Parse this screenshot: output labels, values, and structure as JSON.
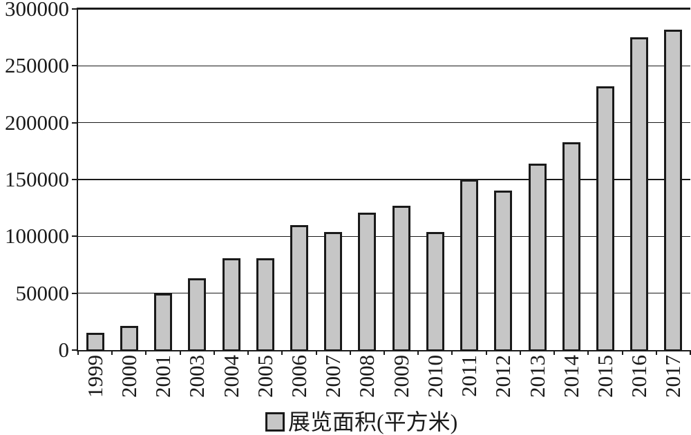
{
  "chart_data": {
    "type": "bar",
    "title": "",
    "xlabel": "",
    "ylabel": "",
    "categories": [
      "1999",
      "2000",
      "2001",
      "2003",
      "2004",
      "2005",
      "2006",
      "2007",
      "2008",
      "2009",
      "2010",
      "2011",
      "2012",
      "2013",
      "2014",
      "2015",
      "2016",
      "2017"
    ],
    "values": [
      15000,
      21000,
      50000,
      63000,
      81000,
      81000,
      110000,
      104000,
      121000,
      127000,
      104000,
      150000,
      140000,
      164000,
      183000,
      232000,
      275000,
      282000
    ],
    "ylim": [
      0,
      300000
    ],
    "yticks": [
      0,
      50000,
      100000,
      150000,
      200000,
      250000,
      300000
    ],
    "grid": true,
    "legend_position": "bottom",
    "legend_label": "展览面积(平方米)",
    "bar_fill_color": "#c6c6c6",
    "bar_border_color": "#1a1a1a",
    "axis_color": "#1a1a1a"
  },
  "legend": {
    "label": "展览面积(平方米)"
  }
}
